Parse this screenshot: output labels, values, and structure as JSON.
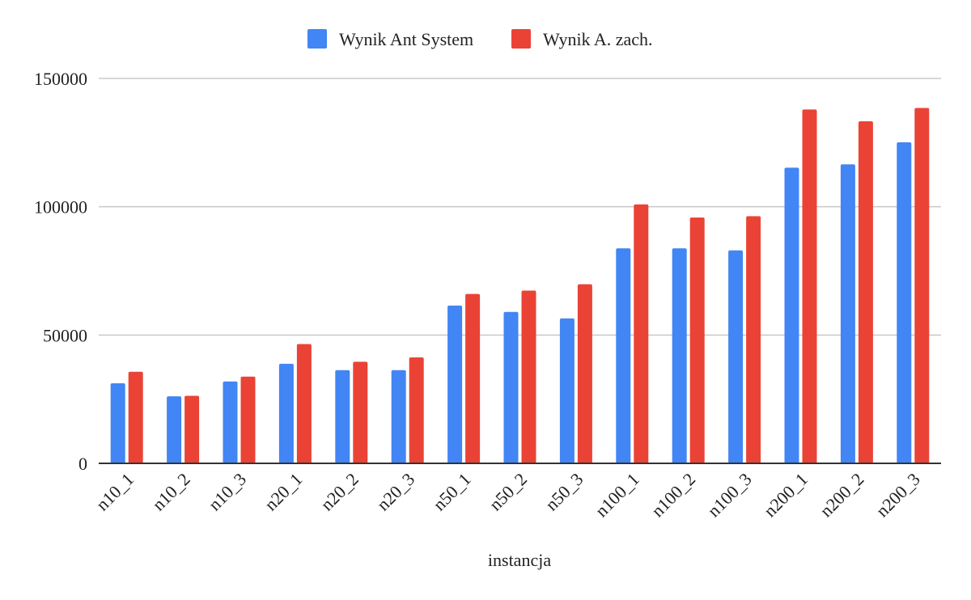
{
  "chart_data": {
    "type": "bar",
    "title": "",
    "xlabel": "instancja",
    "ylabel": "",
    "ylim": [
      0,
      150000
    ],
    "yticks": [
      0,
      50000,
      100000,
      150000
    ],
    "grid": true,
    "legend_position": "top-center",
    "categories": [
      "n10_1",
      "n10_2",
      "n10_3",
      "n20_1",
      "n20_2",
      "n20_3",
      "n50_1",
      "n50_2",
      "n50_3",
      "n100_1",
      "n100_2",
      "n100_3",
      "n200_1",
      "n200_2",
      "n200_3"
    ],
    "series": [
      {
        "name": "Wynik Ant System",
        "color": "#4285f4",
        "values": [
          31200,
          26100,
          31900,
          38800,
          36300,
          36300,
          61500,
          59000,
          56500,
          83800,
          83800,
          83000,
          115200,
          116500,
          125100
        ]
      },
      {
        "name": "Wynik A. zach.",
        "color": "#ea4335",
        "values": [
          35700,
          26300,
          33800,
          46500,
          39600,
          41300,
          66000,
          67300,
          69800,
          100900,
          95800,
          96300,
          137900,
          133300,
          138500
        ]
      }
    ]
  }
}
